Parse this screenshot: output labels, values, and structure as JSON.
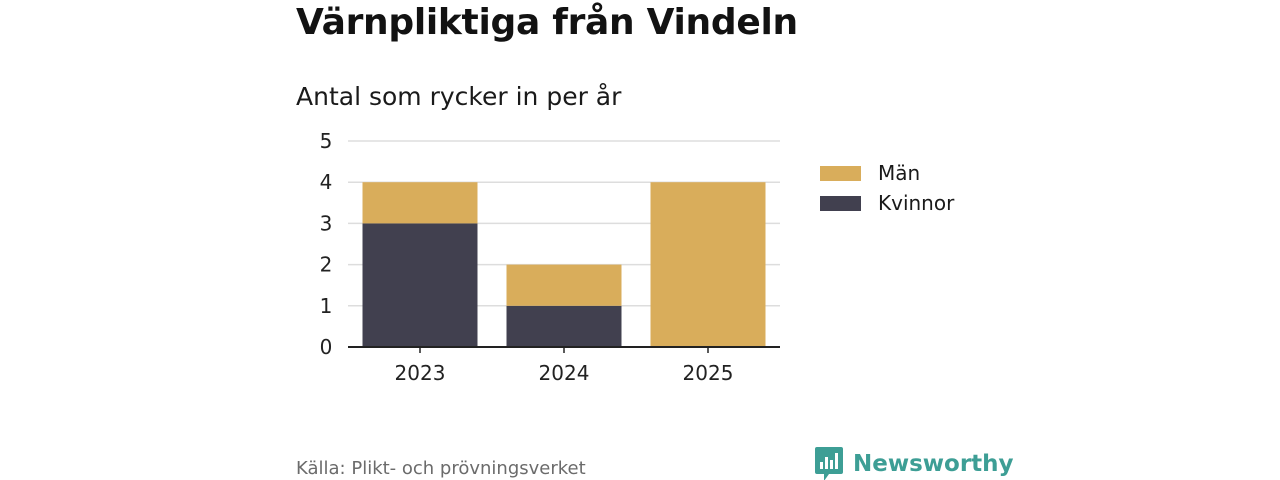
{
  "title": "Värnpliktiga från Vindeln",
  "subtitle": "Antal som rycker in per år",
  "source": "Källa: Plikt- och prövningsverket",
  "brand": {
    "name": "Newsworthy",
    "icon": "newsworthy-logo-icon",
    "color": "#3d9e95"
  },
  "colors": {
    "man": "#d9ad5b",
    "kvinnor": "#41404f",
    "gridline": "#dddddd",
    "axis": "#222222"
  },
  "chart_data": {
    "type": "bar",
    "stacked": true,
    "categories": [
      "2023",
      "2024",
      "2025"
    ],
    "series": [
      {
        "name": "Kvinnor",
        "values": [
          3,
          1,
          0
        ],
        "color": "#41404f"
      },
      {
        "name": "Män",
        "values": [
          1,
          1,
          4
        ],
        "color": "#d9ad5b"
      }
    ],
    "ylim": [
      0,
      5
    ],
    "yticks": [
      0,
      1,
      2,
      3,
      4,
      5
    ],
    "grid": true,
    "legend": "right",
    "legend_order": [
      "Män",
      "Kvinnor"
    ]
  }
}
